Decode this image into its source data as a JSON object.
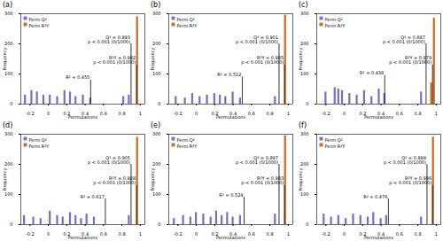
{
  "chart_data": [
    {
      "type": "bar",
      "title": "(a)",
      "x_label": "Permutations",
      "y_label": "Frequency",
      "xlim": [
        -0.3,
        1.05
      ],
      "xticks": [
        -0.2,
        0,
        0.2,
        0.4,
        0.6,
        0.8,
        1
      ],
      "ylim": [
        0,
        300
      ],
      "yticks": [
        0,
        100,
        200,
        300
      ],
      "legend": "top-left",
      "series": [
        {
          "name": "Perm Q²",
          "color": "#7b6fc4",
          "x": [
            -0.25,
            -0.18,
            -0.12,
            -0.05,
            0.02,
            0.1,
            0.18,
            0.24,
            0.3,
            0.38,
            0.46,
            0.82,
            0.88
          ],
          "values": [
            30,
            45,
            40,
            30,
            30,
            25,
            45,
            40,
            25,
            30,
            20,
            25,
            30
          ]
        },
        {
          "name": "Perm R²Y",
          "color": "#d2691e",
          "x": [
            0.97
          ],
          "values": [
            290
          ]
        }
      ],
      "annotations": [
        {
          "x": 0.46,
          "y": 80,
          "text": "R² = 0.455"
        },
        {
          "x": 0.9,
          "y": 200,
          "text": "Q² = 0.893\np < 0.001 (0/1000)"
        },
        {
          "x": 0.96,
          "y": 130,
          "text": "R²Y = 0.982\np < 0.001 (0/1000)"
        }
      ]
    },
    {
      "type": "bar",
      "title": "(b)",
      "x_label": "Permutations",
      "y_label": "Frequency",
      "xlim": [
        -0.3,
        1.05
      ],
      "xticks": [
        -0.2,
        0,
        0.2,
        0.4,
        0.6,
        0.8,
        1
      ],
      "ylim": [
        0,
        300
      ],
      "yticks": [
        0,
        100,
        200,
        300
      ],
      "legend": "top-left",
      "series": [
        {
          "name": "Perm Q²",
          "color": "#7b6fc4",
          "x": [
            -0.22,
            -0.12,
            -0.04,
            0.04,
            0.12,
            0.2,
            0.26,
            0.32,
            0.4,
            0.48,
            0.86
          ],
          "values": [
            25,
            20,
            35,
            25,
            30,
            35,
            30,
            25,
            40,
            20,
            25
          ]
        },
        {
          "name": "Perm R²Y",
          "color": "#d2691e",
          "x": [
            0.97
          ],
          "values": [
            295
          ]
        }
      ],
      "annotations": [
        {
          "x": 0.5,
          "y": 90,
          "text": "R² = 0.512"
        },
        {
          "x": 0.9,
          "y": 200,
          "text": "Q² = 0.901\np < 0.001 (0/1000)"
        },
        {
          "x": 0.96,
          "y": 130,
          "text": "R²Y = 0.985\np < 0.001 (0/1000)"
        }
      ]
    },
    {
      "type": "bar",
      "title": "(c)",
      "x_label": "Permutations",
      "y_label": "Frequency",
      "xlim": [
        -0.3,
        1.05
      ],
      "xticks": [
        -0.2,
        0,
        0.2,
        0.4,
        0.6,
        0.8,
        1
      ],
      "ylim": [
        0,
        300
      ],
      "yticks": [
        0,
        100,
        200,
        300
      ],
      "legend": "top-left",
      "series": [
        {
          "name": "Perm Q²",
          "color": "#7b6fc4",
          "x": [
            -0.2,
            -0.1,
            -0.06,
            -0.02,
            0.06,
            0.14,
            0.22,
            0.3,
            0.38,
            0.44,
            0.84
          ],
          "values": [
            40,
            55,
            50,
            45,
            35,
            30,
            45,
            25,
            50,
            35,
            40
          ]
        },
        {
          "name": "Perm R²Y",
          "color": "#d2691e",
          "x": [
            0.95,
            0.98
          ],
          "values": [
            70,
            285
          ]
        }
      ],
      "annotations": [
        {
          "x": 0.44,
          "y": 95,
          "text": "R² = 0.438"
        },
        {
          "x": 0.89,
          "y": 200,
          "text": "Q² = 0.887\np < 0.001 (0/1000)"
        },
        {
          "x": 0.96,
          "y": 130,
          "text": "R²Y = 0.979\np < 0.001 (0/1000)"
        }
      ]
    },
    {
      "type": "bar",
      "title": "(d)",
      "x_label": "Permutations",
      "y_label": "Frequency",
      "xlim": [
        -0.3,
        1.05
      ],
      "xticks": [
        -0.2,
        0,
        0.2,
        0.4,
        0.6,
        0.8,
        1
      ],
      "ylim": [
        0,
        300
      ],
      "yticks": [
        0,
        100,
        200,
        300
      ],
      "legend": "top-left",
      "series": [
        {
          "name": "Perm Q²",
          "color": "#7b6fc4",
          "x": [
            -0.26,
            -0.16,
            -0.08,
            0.02,
            0.1,
            0.16,
            0.24,
            0.3,
            0.36,
            0.42,
            0.5,
            0.88
          ],
          "values": [
            30,
            25,
            20,
            45,
            30,
            25,
            40,
            30,
            20,
            35,
            25,
            30
          ]
        },
        {
          "name": "Perm R²Y",
          "color": "#d2691e",
          "x": [
            0.97
          ],
          "values": [
            290
          ]
        }
      ],
      "annotations": [
        {
          "x": 0.62,
          "y": 85,
          "text": "R² = 0.617"
        },
        {
          "x": 0.9,
          "y": 200,
          "text": "Q² = 0.905\np < 0.001 (0/1000)"
        },
        {
          "x": 0.96,
          "y": 130,
          "text": "R²Y = 0.988\np < 0.001 (0/1000)"
        }
      ]
    },
    {
      "type": "bar",
      "title": "(e)",
      "x_label": "Permutations",
      "y_label": "Frequency",
      "xlim": [
        -0.3,
        1.05
      ],
      "xticks": [
        -0.2,
        0,
        0.2,
        0.4,
        0.6,
        0.8,
        1
      ],
      "ylim": [
        0,
        300
      ],
      "yticks": [
        0,
        100,
        200,
        300
      ],
      "legend": "top-left",
      "series": [
        {
          "name": "Perm Q²",
          "color": "#7b6fc4",
          "x": [
            -0.24,
            -0.14,
            -0.06,
            0.0,
            0.08,
            0.16,
            0.22,
            0.28,
            0.34,
            0.4,
            0.48,
            0.86
          ],
          "values": [
            20,
            30,
            25,
            40,
            35,
            25,
            45,
            30,
            40,
            25,
            30,
            35
          ]
        },
        {
          "name": "Perm R²Y",
          "color": "#d2691e",
          "x": [
            0.97
          ],
          "values": [
            295
          ]
        }
      ],
      "annotations": [
        {
          "x": 0.52,
          "y": 90,
          "text": "R² = 0.524"
        },
        {
          "x": 0.9,
          "y": 200,
          "text": "Q² = 0.897\np < 0.001 (0/1000)"
        },
        {
          "x": 0.96,
          "y": 130,
          "text": "R²Y = 0.983\np < 0.001 (0/1000)"
        }
      ]
    },
    {
      "type": "bar",
      "title": "(f)",
      "x_label": "Permutations",
      "y_label": "Frequency",
      "xlim": [
        -0.3,
        1.05
      ],
      "xticks": [
        -0.2,
        0,
        0.2,
        0.4,
        0.6,
        0.8,
        1
      ],
      "ylim": [
        0,
        300
      ],
      "yticks": [
        0,
        100,
        200,
        300
      ],
      "legend": "top-left",
      "series": [
        {
          "name": "Perm Q²",
          "color": "#7b6fc4",
          "x": [
            -0.22,
            -0.14,
            -0.06,
            0.02,
            0.1,
            0.18,
            0.26,
            0.32,
            0.4,
            0.46,
            0.84
          ],
          "values": [
            35,
            25,
            30,
            20,
            35,
            30,
            25,
            40,
            20,
            30,
            25
          ]
        },
        {
          "name": "Perm R²Y",
          "color": "#d2691e",
          "x": [
            0.97
          ],
          "values": [
            290
          ]
        }
      ],
      "annotations": [
        {
          "x": 0.48,
          "y": 85,
          "text": "R² = 0.476"
        },
        {
          "x": 0.9,
          "y": 200,
          "text": "Q² = 0.899\np < 0.001 (0/1000)"
        },
        {
          "x": 0.96,
          "y": 130,
          "text": "R²Y = 0.986\np < 0.001 (0/1000)"
        }
      ]
    }
  ]
}
